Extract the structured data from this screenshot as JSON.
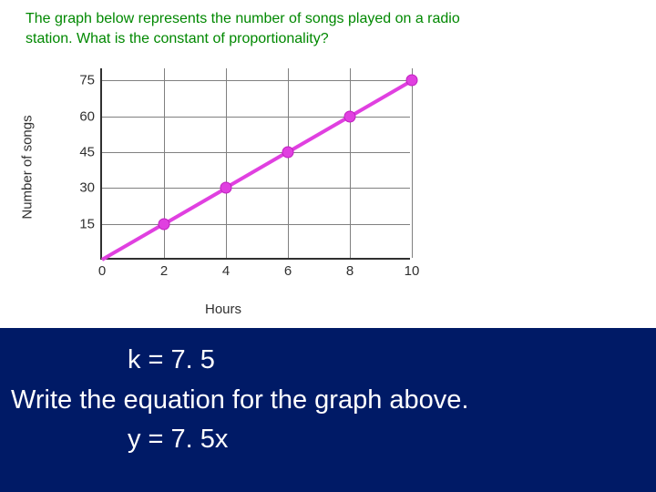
{
  "question": {
    "line1": "The graph below represents the number of songs played on a radio",
    "line2": "station. What is the constant of proportionality?"
  },
  "chart": {
    "type": "line",
    "y_label": "Number of songs",
    "x_label": "Hours",
    "x_ticks": [
      0,
      2,
      4,
      6,
      8,
      10
    ],
    "y_ticks": [
      15,
      30,
      45,
      60,
      75
    ],
    "xlim": [
      0,
      10
    ],
    "ylim": [
      0,
      80
    ],
    "grid_color": "#808080",
    "axis_color": "#303030",
    "line_color": "#e040e0",
    "point_color": "#e040e0",
    "line_width": 4,
    "point_radius": 6.5,
    "data_points": [
      {
        "x": 0,
        "y": 0
      },
      {
        "x": 2,
        "y": 15
      },
      {
        "x": 4,
        "y": 30
      },
      {
        "x": 6,
        "y": 45
      },
      {
        "x": 8,
        "y": 60
      },
      {
        "x": 10,
        "y": 75
      }
    ],
    "marked_points": [
      {
        "x": 2,
        "y": 15
      },
      {
        "x": 4,
        "y": 30
      },
      {
        "x": 6,
        "y": 45
      },
      {
        "x": 8,
        "y": 60
      },
      {
        "x": 10,
        "y": 75
      }
    ],
    "label_fontsize": 15,
    "tick_fontsize": 15,
    "background_color": "#ffffff"
  },
  "answers": {
    "k_line": "k = 7. 5",
    "prompt_line": "Write the equation for the graph above.",
    "equation_line": "y = 7. 5x"
  },
  "page_background": "#001a66",
  "answer_fontsize": 29,
  "answer_color": "#ffffff",
  "question_color": "#008800"
}
